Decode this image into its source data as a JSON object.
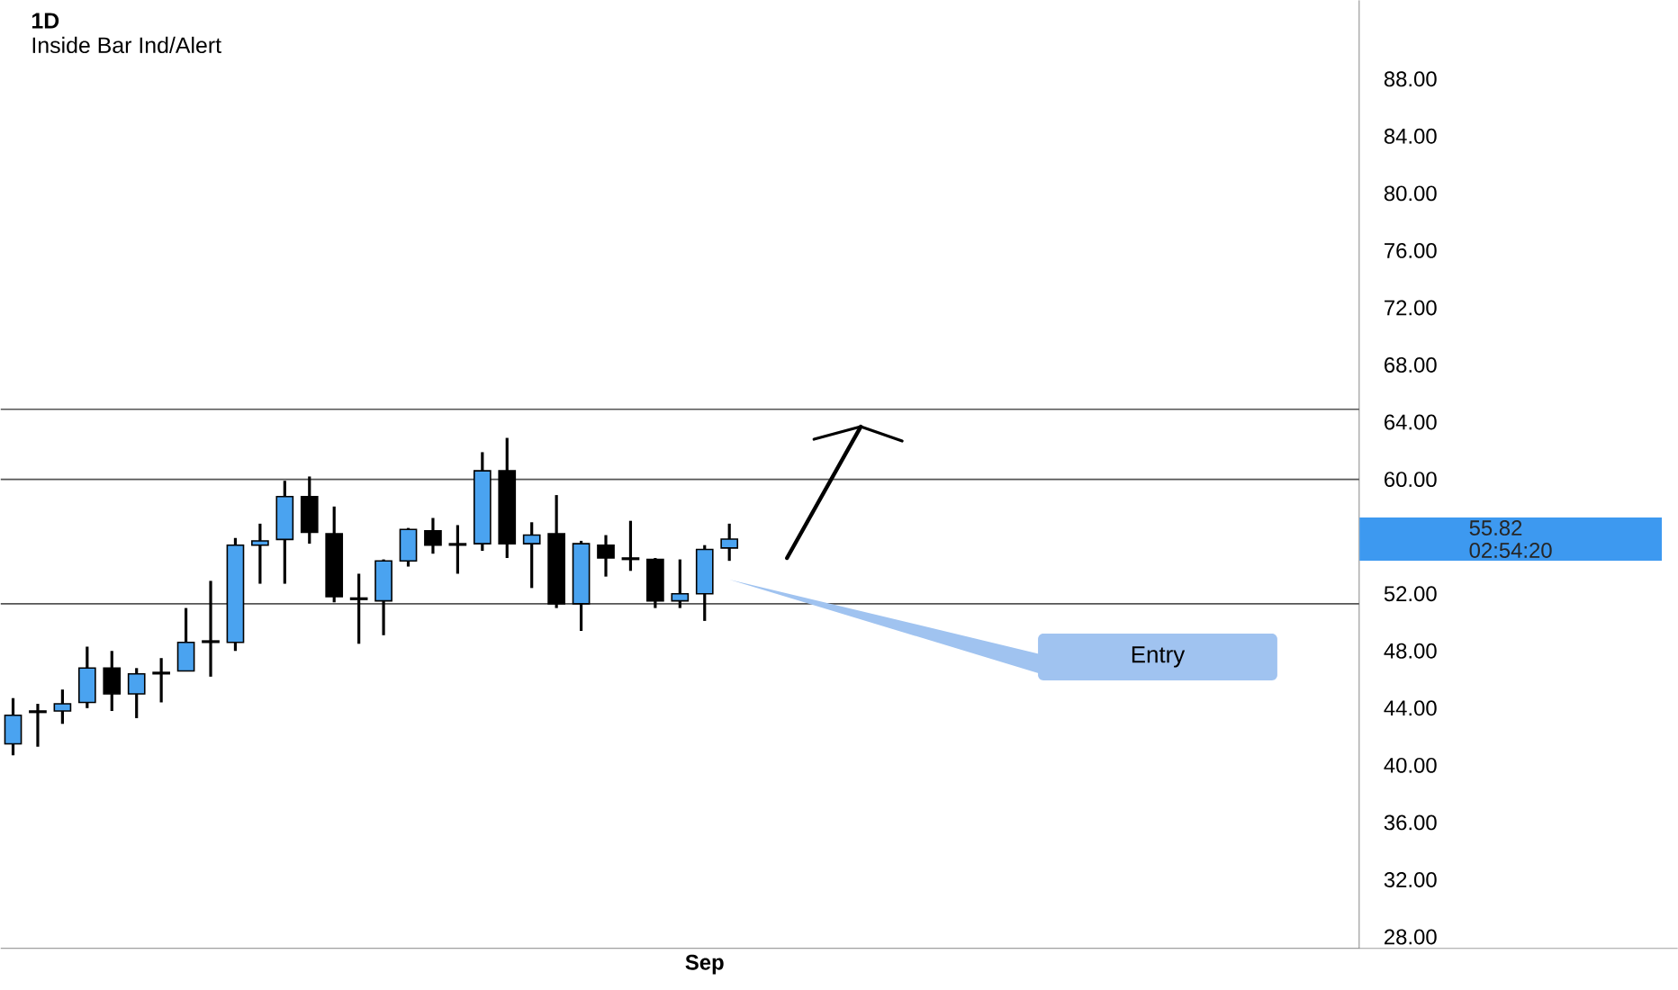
{
  "chart_data": {
    "type": "candlestick",
    "title": "1D",
    "subtitle": "Inside Bar Ind/Alert",
    "categories": [
      null,
      null,
      null,
      null,
      null,
      null,
      null,
      null,
      null,
      null,
      null,
      null,
      null,
      null,
      null,
      null,
      null,
      null,
      null,
      null,
      null,
      null,
      null,
      null,
      null,
      null,
      null,
      null,
      "Sep",
      null,
      null,
      null,
      null,
      null,
      null,
      null,
      null,
      null,
      null,
      null,
      null,
      null,
      null,
      null,
      null,
      null,
      null,
      null,
      null,
      null,
      null,
      null,
      null,
      null,
      null
    ],
    "ohlc": [
      [
        41.5,
        44.7,
        40.7,
        43.5
      ],
      [
        43.7,
        44.3,
        41.3,
        43.8
      ],
      [
        43.8,
        45.3,
        42.9,
        44.3
      ],
      [
        44.4,
        48.3,
        44.0,
        46.8
      ],
      [
        46.8,
        48.0,
        43.8,
        45.0
      ],
      [
        45.0,
        46.8,
        43.3,
        46.4
      ],
      [
        46.4,
        47.5,
        44.4,
        46.5
      ],
      [
        46.6,
        51.0,
        46.6,
        48.6
      ],
      [
        48.6,
        52.9,
        46.2,
        48.7
      ],
      [
        48.6,
        55.9,
        48.0,
        55.4
      ],
      [
        55.4,
        56.9,
        52.7,
        55.7
      ],
      [
        55.8,
        59.9,
        52.7,
        58.8
      ],
      [
        58.8,
        60.2,
        55.5,
        56.3
      ],
      [
        56.2,
        58.1,
        51.4,
        51.8
      ],
      [
        51.6,
        53.4,
        48.5,
        51.7
      ],
      [
        51.5,
        54.4,
        49.1,
        54.3
      ],
      [
        54.3,
        56.6,
        53.9,
        56.5
      ],
      [
        56.4,
        57.3,
        54.8,
        55.4
      ],
      [
        55.5,
        56.8,
        53.4,
        55.4
      ],
      [
        55.5,
        61.9,
        55.0,
        60.6
      ],
      [
        60.6,
        62.9,
        54.5,
        55.5
      ],
      [
        55.5,
        57.0,
        52.4,
        56.1
      ],
      [
        56.2,
        58.9,
        51.0,
        51.3
      ],
      [
        51.3,
        55.7,
        49.4,
        55.5
      ],
      [
        55.4,
        56.1,
        53.2,
        54.5
      ],
      [
        54.5,
        57.1,
        53.6,
        54.4
      ],
      [
        54.4,
        54.5,
        51.0,
        51.5
      ],
      [
        51.5,
        54.4,
        51.0,
        52.0
      ],
      [
        52.0,
        55.4,
        50.1,
        55.1
      ],
      [
        55.2,
        56.9,
        54.3,
        55.82
      ],
      null,
      null,
      null,
      null,
      null,
      null,
      null,
      null,
      null,
      null,
      null,
      null,
      null,
      null,
      null,
      null,
      null,
      null,
      null,
      null,
      null,
      null,
      null,
      null,
      null
    ],
    "colors": [
      "#4aa3f0",
      "#4aa3f0",
      "#4aa3f0",
      "#4aa3f0",
      "#000000",
      "#4aa3f0",
      "#4aa3f0",
      "#4aa3f0",
      "#4aa3f0",
      "#4aa3f0",
      "#4aa3f0",
      "#4aa3f0",
      "#000000",
      "#000000",
      "#4aa3f0",
      "#4aa3f0",
      "#4aa3f0",
      "#000000",
      "#000000",
      "#4aa3f0",
      "#000000",
      "#4aa3f0",
      "#000000",
      "#4aa3f0",
      "#000000",
      "#000000",
      "#000000",
      "#4aa3f0",
      "#4aa3f0",
      "#4aa3f0",
      null,
      null,
      null,
      null,
      null,
      null,
      null,
      null,
      null,
      null,
      null,
      null,
      null,
      null,
      null,
      null,
      null,
      null,
      null,
      null,
      null,
      null,
      null,
      null,
      null
    ],
    "ylim": [
      27.2,
      93.5
    ],
    "yticks": [
      {
        "value": 28,
        "label": "28.00"
      },
      {
        "value": 32,
        "label": "32.00"
      },
      {
        "value": 36,
        "label": "36.00"
      },
      {
        "value": 40,
        "label": "40.00"
      },
      {
        "value": 44,
        "label": "44.00"
      },
      {
        "value": 48,
        "label": "48.00"
      },
      {
        "value": 52,
        "label": "52.00"
      },
      {
        "value": 60,
        "label": "60.00"
      },
      {
        "value": 64,
        "label": "64.00"
      },
      {
        "value": 68,
        "label": "68.00"
      },
      {
        "value": 72,
        "label": "72.00"
      },
      {
        "value": 76,
        "label": "76.00"
      },
      {
        "value": 80,
        "label": "80.00"
      },
      {
        "value": 84,
        "label": "84.00"
      },
      {
        "value": 88,
        "label": "88.00"
      }
    ],
    "ref_lines": [
      {
        "axis": "y",
        "value": 64.9,
        "color": "#555555"
      },
      {
        "axis": "y",
        "value": 60.0,
        "color": "#555555"
      },
      {
        "axis": "y",
        "value": 51.3,
        "color": "#555555"
      }
    ],
    "annotations": [
      "55.82",
      "02:54:20",
      "Entry"
    ],
    "grid": false
  }
}
